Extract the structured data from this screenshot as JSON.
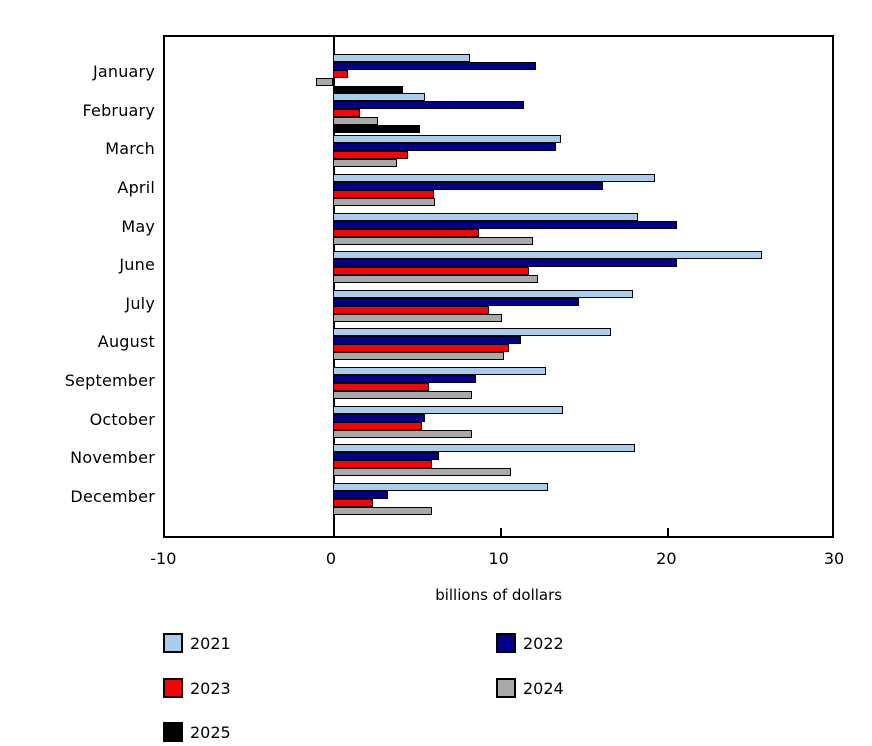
{
  "chart_data": {
    "type": "bar",
    "orientation": "horizontal",
    "title": "",
    "xlabel": "billions of dollars",
    "ylabel": "",
    "xlim": [
      -10,
      30
    ],
    "xticks": [
      -10,
      0,
      10,
      20,
      30
    ],
    "grid": false,
    "legend_position": "bottom",
    "categories": [
      "January",
      "February",
      "March",
      "April",
      "May",
      "June",
      "July",
      "August",
      "September",
      "October",
      "November",
      "December"
    ],
    "series": [
      {
        "name": "2021",
        "color": "#A9CDEE",
        "values": [
          8.2,
          5.5,
          13.6,
          19.2,
          18.2,
          25.6,
          17.9,
          16.6,
          12.7,
          13.7,
          18.0,
          12.8
        ]
      },
      {
        "name": "2022",
        "color": "#00008B",
        "values": [
          12.1,
          11.4,
          13.3,
          16.1,
          20.5,
          20.5,
          14.7,
          11.2,
          8.5,
          5.5,
          6.3,
          3.3
        ]
      },
      {
        "name": "2023",
        "color": "#FF0000",
        "values": [
          0.9,
          1.6,
          4.5,
          6.0,
          8.7,
          11.7,
          9.3,
          10.5,
          5.7,
          5.3,
          5.9,
          2.4
        ]
      },
      {
        "name": "2024",
        "color": "#A9A9A9",
        "values": [
          -1.0,
          2.7,
          3.8,
          6.1,
          11.9,
          12.2,
          10.1,
          10.2,
          8.3,
          8.3,
          10.6,
          5.9
        ]
      },
      {
        "name": "2025",
        "color": "#000000",
        "values": [
          4.2,
          5.2,
          null,
          null,
          null,
          null,
          null,
          null,
          null,
          null,
          null,
          null
        ]
      }
    ]
  },
  "colors": {
    "axis": "#000000",
    "background": "#ffffff"
  }
}
